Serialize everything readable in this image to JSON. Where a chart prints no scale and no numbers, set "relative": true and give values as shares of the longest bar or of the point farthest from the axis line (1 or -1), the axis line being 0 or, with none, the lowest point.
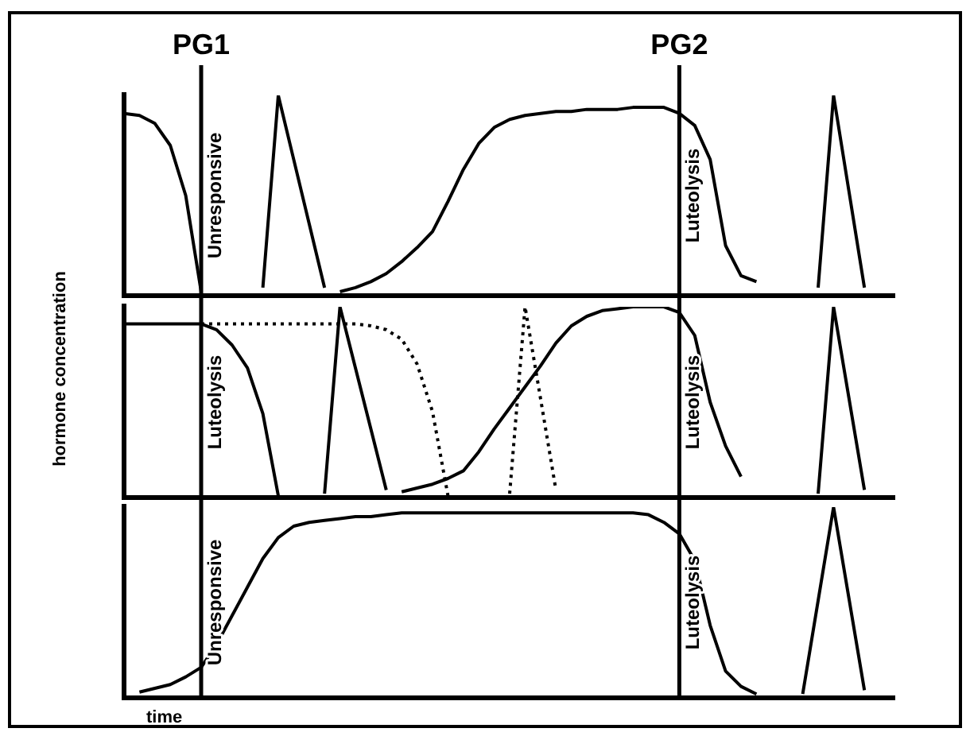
{
  "chart_data": [
    {
      "type": "line",
      "relative": true,
      "marker": "none",
      "categories": [
        null,
        null,
        null,
        null,
        null,
        "PG1",
        null,
        null,
        null,
        null,
        null,
        null,
        null,
        null,
        null,
        null,
        null,
        null,
        null,
        null,
        null,
        null,
        null,
        null,
        null,
        null,
        null,
        null,
        null,
        null,
        null,
        null,
        null,
        null,
        null,
        null,
        "PG2",
        null,
        null,
        null,
        null,
        null,
        null,
        null,
        null,
        null,
        null,
        null,
        null,
        null,
        null
      ],
      "ref_lines": [
        {
          "axis": "x",
          "value": "PG1"
        },
        {
          "axis": "x",
          "value": "PG2"
        }
      ],
      "annotations": [
        {
          "text": "Unresponsive",
          "x": "PG1"
        },
        {
          "text": "Luteolysis",
          "x": "PG2"
        }
      ],
      "series": [
        {
          "color": "#000000",
          "values": [
            0.91,
            0.9,
            0.86,
            0.75,
            0.5,
            0.02,
            null,
            null,
            null,
            null,
            null,
            null,
            null,
            null,
            null,
            null,
            null,
            null,
            null,
            null,
            null,
            null,
            null,
            null,
            null,
            null,
            null,
            null,
            null,
            null,
            null,
            null,
            null,
            null,
            null,
            null,
            null,
            null,
            null,
            null,
            null,
            null,
            null,
            null,
            null,
            null,
            null,
            null,
            null,
            null,
            null
          ]
        },
        {
          "color": "#000000",
          "values": [
            null,
            null,
            null,
            null,
            null,
            null,
            null,
            null,
            null,
            0.04,
            1,
            0.68,
            0.36,
            0.04,
            null,
            null,
            null,
            null,
            null,
            null,
            null,
            null,
            null,
            null,
            null,
            null,
            null,
            null,
            null,
            null,
            null,
            null,
            null,
            null,
            null,
            null,
            null,
            null,
            null,
            null,
            null,
            null,
            null,
            null,
            null,
            null,
            null,
            null,
            null,
            null,
            null
          ]
        },
        {
          "color": "#000000",
          "values": [
            null,
            null,
            null,
            null,
            null,
            null,
            null,
            null,
            null,
            null,
            null,
            null,
            null,
            null,
            0.02,
            0.04,
            0.07,
            0.11,
            0.17,
            0.24,
            0.32,
            0.47,
            0.63,
            0.76,
            0.84,
            0.88,
            0.9,
            0.91,
            0.92,
            0.92,
            0.93,
            0.93,
            0.93,
            0.94,
            0.94,
            0.94,
            0.91,
            0.85,
            0.68,
            0.25,
            0.1,
            0.07,
            null,
            null,
            null,
            null,
            null,
            null,
            null,
            null,
            null
          ]
        },
        {
          "color": "#000000",
          "values": [
            null,
            null,
            null,
            null,
            null,
            null,
            null,
            null,
            null,
            null,
            null,
            null,
            null,
            null,
            null,
            null,
            null,
            null,
            null,
            null,
            null,
            null,
            null,
            null,
            null,
            null,
            null,
            null,
            null,
            null,
            null,
            null,
            null,
            null,
            null,
            null,
            null,
            null,
            null,
            null,
            null,
            null,
            null,
            null,
            null,
            0.04,
            1,
            0.52,
            0.04,
            null,
            null
          ]
        }
      ]
    },
    {
      "type": "line",
      "relative": true,
      "marker": "none",
      "tick_labels": false,
      "ylabel": "hormone concentration",
      "categories": [
        null,
        null,
        null,
        null,
        null,
        "PG1",
        null,
        null,
        null,
        null,
        null,
        null,
        null,
        null,
        null,
        null,
        null,
        null,
        null,
        null,
        null,
        null,
        null,
        null,
        null,
        null,
        null,
        null,
        null,
        null,
        null,
        null,
        null,
        null,
        null,
        null,
        "PG2",
        null,
        null,
        null,
        null,
        null,
        null,
        null,
        null,
        null,
        null,
        null,
        null,
        null,
        null
      ],
      "ref_lines": [
        {
          "axis": "x",
          "value": "PG1"
        },
        {
          "axis": "x",
          "value": "PG2"
        }
      ],
      "annotations": [
        {
          "text": "Luteolysis",
          "x": "PG1"
        },
        {
          "text": "Luteolysis",
          "x": "PG2"
        }
      ],
      "series": [
        {
          "color": "#000000",
          "values": [
            0.91,
            0.91,
            0.91,
            0.91,
            0.91,
            0.91,
            0.88,
            0.8,
            0.68,
            0.44,
            0.01,
            null,
            null,
            null,
            null,
            null,
            null,
            null,
            null,
            null,
            null,
            null,
            null,
            null,
            null,
            null,
            null,
            null,
            null,
            null,
            null,
            null,
            null,
            null,
            null,
            null,
            null,
            null,
            null,
            null,
            null,
            null,
            null,
            null,
            null,
            null,
            null,
            null,
            null,
            null,
            null
          ]
        },
        {
          "color": "#000000",
          "values": [
            null,
            null,
            null,
            null,
            null,
            null,
            null,
            null,
            null,
            null,
            null,
            null,
            null,
            0.02,
            1,
            0.68,
            0.36,
            0.04,
            null,
            null,
            null,
            null,
            null,
            null,
            null,
            null,
            null,
            null,
            null,
            null,
            null,
            null,
            null,
            null,
            null,
            null,
            null,
            null,
            null,
            null,
            null,
            null,
            null,
            null,
            null,
            null,
            null,
            null,
            null,
            null,
            null
          ]
        },
        {
          "color": "#000000",
          "line_style": "dotted",
          "values": [
            null,
            null,
            null,
            null,
            null,
            0.91,
            0.91,
            0.91,
            0.91,
            0.91,
            0.91,
            0.91,
            0.91,
            0.91,
            0.91,
            0.91,
            0.9,
            0.88,
            0.83,
            0.7,
            0.45,
            0.01,
            null,
            null,
            null,
            null,
            null,
            null,
            null,
            null,
            null,
            null,
            null,
            null,
            null,
            null,
            null,
            null,
            null,
            null,
            null,
            null,
            null,
            null,
            null,
            null,
            null,
            null,
            null,
            null,
            null
          ]
        },
        {
          "color": "#000000",
          "line_style": "dotted",
          "values": [
            null,
            null,
            null,
            null,
            null,
            null,
            null,
            null,
            null,
            null,
            null,
            null,
            null,
            null,
            null,
            null,
            null,
            null,
            null,
            null,
            null,
            null,
            null,
            null,
            null,
            0.02,
            1,
            0.52,
            0.04,
            null,
            null,
            null,
            null,
            null,
            null,
            null,
            null,
            null,
            null,
            null,
            null,
            null,
            null,
            null,
            null,
            null,
            null,
            null,
            null,
            null,
            null
          ]
        },
        {
          "color": "#000000",
          "values": [
            null,
            null,
            null,
            null,
            null,
            null,
            null,
            null,
            null,
            null,
            null,
            null,
            null,
            null,
            null,
            null,
            null,
            null,
            0.03,
            0.05,
            0.07,
            0.1,
            0.14,
            0.24,
            0.36,
            0.47,
            0.58,
            0.69,
            0.81,
            0.9,
            0.95,
            0.98,
            0.99,
            1,
            1,
            1,
            0.97,
            0.85,
            0.5,
            0.27,
            0.11,
            null,
            null,
            null,
            null,
            null,
            null,
            null,
            null,
            null,
            null
          ]
        },
        {
          "color": "#000000",
          "values": [
            null,
            null,
            null,
            null,
            null,
            null,
            null,
            null,
            null,
            null,
            null,
            null,
            null,
            null,
            null,
            null,
            null,
            null,
            null,
            null,
            null,
            null,
            null,
            null,
            null,
            null,
            null,
            null,
            null,
            null,
            null,
            null,
            null,
            null,
            null,
            null,
            null,
            null,
            null,
            null,
            null,
            null,
            null,
            null,
            null,
            0.02,
            1,
            0.52,
            0.04,
            null,
            null
          ]
        }
      ]
    },
    {
      "type": "line",
      "relative": true,
      "marker": "none",
      "tick_labels": false,
      "xlabel": "time",
      "categories": [
        null,
        null,
        null,
        null,
        null,
        "PG1",
        null,
        null,
        null,
        null,
        null,
        null,
        null,
        null,
        null,
        null,
        null,
        null,
        null,
        null,
        null,
        null,
        null,
        null,
        null,
        null,
        null,
        null,
        null,
        null,
        null,
        null,
        null,
        null,
        null,
        null,
        "PG2",
        null,
        null,
        null,
        null,
        null,
        null,
        null,
        null,
        null,
        null,
        null,
        null,
        null,
        null
      ],
      "ref_lines": [
        {
          "axis": "x",
          "value": "PG1"
        },
        {
          "axis": "x",
          "value": "PG2"
        }
      ],
      "annotations": [
        {
          "text": "Unresponsive",
          "x": "PG1"
        },
        {
          "text": "Luteolysis",
          "x": "PG2"
        }
      ],
      "series": [
        {
          "color": "#000000",
          "values": [
            null,
            0.03,
            0.05,
            0.07,
            0.11,
            0.16,
            0.28,
            0.43,
            0.58,
            0.73,
            0.84,
            0.9,
            0.92,
            0.93,
            0.94,
            0.95,
            0.95,
            0.96,
            0.97,
            0.97,
            0.97,
            0.97,
            0.97,
            0.97,
            0.97,
            0.97,
            0.97,
            0.97,
            0.97,
            0.97,
            0.97,
            0.97,
            0.97,
            0.97,
            0.96,
            0.92,
            0.86,
            0.72,
            0.38,
            0.14,
            0.06,
            0.02,
            null,
            null,
            null,
            null,
            null,
            null,
            null,
            null,
            null
          ]
        },
        {
          "color": "#000000",
          "values": [
            null,
            null,
            null,
            null,
            null,
            null,
            null,
            null,
            null,
            null,
            null,
            null,
            null,
            null,
            null,
            null,
            null,
            null,
            null,
            null,
            null,
            null,
            null,
            null,
            null,
            null,
            null,
            null,
            null,
            null,
            null,
            null,
            null,
            null,
            null,
            null,
            null,
            null,
            null,
            null,
            null,
            null,
            null,
            null,
            0.02,
            0.51,
            1,
            0.52,
            0.04,
            null,
            null
          ]
        }
      ]
    }
  ]
}
